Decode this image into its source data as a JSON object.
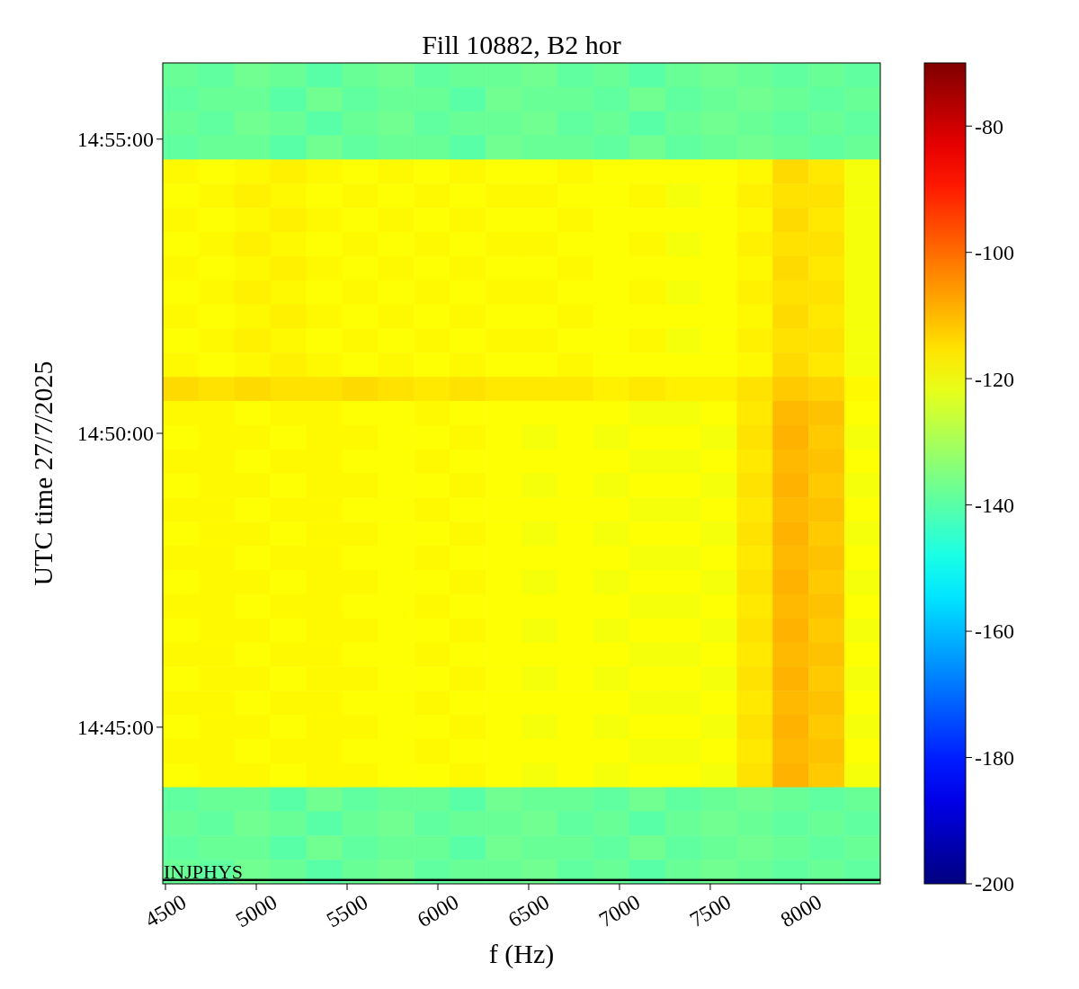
{
  "chart_data": {
    "type": "heatmap",
    "title": "Fill 10882, B2 hor",
    "xlabel": "f (Hz)",
    "ylabel": "UTC time 27/7/2025",
    "x": [
      4584,
      4781,
      4979,
      5176,
      5374,
      5572,
      5769,
      5967,
      6164,
      6362,
      6559,
      6757,
      6954,
      7152,
      7350,
      7547,
      7745,
      7942,
      8140,
      8337
    ],
    "xlim": [
      4485,
      8436
    ],
    "xticks": [
      4500,
      5000,
      5500,
      6000,
      6500,
      7000,
      7500,
      8000
    ],
    "ylim": [
      14.7056,
      14.9383
    ],
    "yticks": [
      {
        "value": 14.75,
        "label": "14:45:00"
      },
      {
        "value": 14.8333,
        "label": "14:50:00"
      },
      {
        "value": 14.9167,
        "label": "14:55:00"
      }
    ],
    "clim": [
      -200,
      -70
    ],
    "cticks": [
      -200,
      -180,
      -160,
      -140,
      -120,
      -100,
      -80
    ],
    "ref_lines": [
      {
        "axis": "y",
        "value": 14.7067,
        "label": "INJPHYS",
        "color": "#000000"
      }
    ],
    "cells": [
      [
        -138,
        -139,
        -137,
        -138,
        -140,
        -138,
        -137,
        -139,
        -138,
        -138,
        -137,
        -139,
        -138,
        -140,
        -138,
        -137,
        -138,
        -139,
        -138,
        -139
      ],
      [
        -139,
        -138,
        -138,
        -140,
        -137,
        -139,
        -138,
        -138,
        -140,
        -137,
        -138,
        -138,
        -139,
        -137,
        -139,
        -138,
        -137,
        -138,
        -139,
        -138
      ],
      [
        -138,
        -139,
        -137,
        -138,
        -140,
        -138,
        -137,
        -139,
        -138,
        -138,
        -137,
        -139,
        -138,
        -140,
        -138,
        -137,
        -138,
        -139,
        -138,
        -139
      ],
      [
        -139,
        -138,
        -138,
        -140,
        -137,
        -139,
        -138,
        -138,
        -140,
        -137,
        -138,
        -138,
        -139,
        -137,
        -139,
        -138,
        -137,
        -138,
        -139,
        -138
      ],
      [
        -118,
        -119,
        -118,
        -117,
        -118,
        -119,
        -118,
        -119,
        -118,
        -119,
        -119,
        -118,
        -119,
        -119,
        -119,
        -119,
        -118,
        -114,
        -116,
        -120
      ],
      [
        -119,
        -118,
        -117,
        -118,
        -119,
        -118,
        -119,
        -118,
        -119,
        -118,
        -118,
        -119,
        -119,
        -118,
        -120,
        -119,
        -117,
        -115,
        -115,
        -120
      ],
      [
        -118,
        -119,
        -118,
        -117,
        -118,
        -119,
        -118,
        -119,
        -118,
        -119,
        -119,
        -118,
        -119,
        -119,
        -119,
        -119,
        -118,
        -114,
        -116,
        -120
      ],
      [
        -119,
        -118,
        -117,
        -118,
        -119,
        -118,
        -119,
        -118,
        -119,
        -118,
        -118,
        -119,
        -119,
        -118,
        -120,
        -119,
        -117,
        -115,
        -115,
        -120
      ],
      [
        -118,
        -119,
        -118,
        -117,
        -118,
        -119,
        -118,
        -119,
        -118,
        -119,
        -119,
        -118,
        -119,
        -119,
        -119,
        -119,
        -118,
        -114,
        -116,
        -120
      ],
      [
        -119,
        -118,
        -117,
        -118,
        -119,
        -118,
        -119,
        -118,
        -119,
        -118,
        -118,
        -119,
        -119,
        -118,
        -120,
        -119,
        -117,
        -115,
        -115,
        -120
      ],
      [
        -118,
        -119,
        -118,
        -117,
        -118,
        -119,
        -118,
        -119,
        -118,
        -119,
        -119,
        -118,
        -119,
        -119,
        -119,
        -119,
        -118,
        -114,
        -116,
        -120
      ],
      [
        -119,
        -118,
        -117,
        -118,
        -119,
        -118,
        -119,
        -118,
        -119,
        -118,
        -118,
        -119,
        -119,
        -118,
        -120,
        -119,
        -117,
        -115,
        -115,
        -120
      ],
      [
        -118,
        -119,
        -118,
        -117,
        -118,
        -119,
        -118,
        -119,
        -118,
        -119,
        -119,
        -118,
        -119,
        -119,
        -119,
        -119,
        -118,
        -114,
        -116,
        -120
      ],
      [
        -114,
        -115,
        -114,
        -115,
        -115,
        -114,
        -115,
        -116,
        -115,
        -116,
        -116,
        -116,
        -117,
        -116,
        -117,
        -117,
        -115,
        -112,
        -113,
        -118
      ],
      [
        -118,
        -118,
        -119,
        -118,
        -118,
        -119,
        -119,
        -118,
        -119,
        -119,
        -119,
        -119,
        -119,
        -120,
        -120,
        -119,
        -116,
        -110,
        -111,
        -119
      ],
      [
        -119,
        -118,
        -118,
        -119,
        -118,
        -118,
        -119,
        -119,
        -118,
        -119,
        -120,
        -119,
        -120,
        -119,
        -119,
        -120,
        -115,
        -109,
        -112,
        -120
      ],
      [
        -118,
        -118,
        -119,
        -118,
        -118,
        -119,
        -119,
        -118,
        -119,
        -119,
        -119,
        -119,
        -119,
        -120,
        -120,
        -119,
        -116,
        -110,
        -111,
        -119
      ],
      [
        -119,
        -118,
        -118,
        -119,
        -118,
        -118,
        -119,
        -119,
        -118,
        -119,
        -120,
        -119,
        -120,
        -119,
        -119,
        -120,
        -115,
        -109,
        -112,
        -120
      ],
      [
        -118,
        -118,
        -119,
        -118,
        -118,
        -119,
        -119,
        -118,
        -119,
        -119,
        -119,
        -119,
        -119,
        -120,
        -120,
        -119,
        -116,
        -110,
        -111,
        -119
      ],
      [
        -119,
        -118,
        -118,
        -119,
        -118,
        -118,
        -119,
        -119,
        -118,
        -119,
        -120,
        -119,
        -120,
        -119,
        -119,
        -120,
        -115,
        -109,
        -112,
        -120
      ],
      [
        -118,
        -118,
        -119,
        -118,
        -118,
        -119,
        -119,
        -118,
        -119,
        -119,
        -119,
        -119,
        -119,
        -120,
        -120,
        -119,
        -116,
        -110,
        -111,
        -119
      ],
      [
        -119,
        -118,
        -118,
        -119,
        -118,
        -118,
        -119,
        -119,
        -118,
        -119,
        -120,
        -119,
        -120,
        -119,
        -119,
        -120,
        -115,
        -109,
        -112,
        -120
      ],
      [
        -118,
        -118,
        -119,
        -118,
        -118,
        -119,
        -119,
        -118,
        -119,
        -119,
        -119,
        -119,
        -119,
        -120,
        -120,
        -119,
        -116,
        -110,
        -111,
        -119
      ],
      [
        -119,
        -118,
        -118,
        -119,
        -118,
        -118,
        -119,
        -119,
        -118,
        -119,
        -120,
        -119,
        -120,
        -119,
        -119,
        -120,
        -115,
        -109,
        -112,
        -120
      ],
      [
        -118,
        -118,
        -119,
        -118,
        -118,
        -119,
        -119,
        -118,
        -119,
        -119,
        -119,
        -119,
        -119,
        -120,
        -120,
        -119,
        -116,
        -110,
        -111,
        -119
      ],
      [
        -119,
        -118,
        -118,
        -119,
        -118,
        -118,
        -119,
        -119,
        -118,
        -119,
        -120,
        -119,
        -120,
        -119,
        -119,
        -120,
        -115,
        -109,
        -112,
        -120
      ],
      [
        -118,
        -118,
        -119,
        -118,
        -118,
        -119,
        -119,
        -118,
        -119,
        -119,
        -119,
        -119,
        -119,
        -120,
        -120,
        -119,
        -116,
        -110,
        -111,
        -119
      ],
      [
        -119,
        -118,
        -118,
        -119,
        -118,
        -118,
        -119,
        -119,
        -118,
        -119,
        -120,
        -119,
        -120,
        -119,
        -119,
        -120,
        -115,
        -109,
        -112,
        -120
      ],
      [
        -118,
        -118,
        -119,
        -118,
        -118,
        -119,
        -119,
        -118,
        -119,
        -119,
        -119,
        -119,
        -119,
        -120,
        -120,
        -119,
        -116,
        -110,
        -111,
        -119
      ],
      [
        -119,
        -118,
        -118,
        -119,
        -118,
        -118,
        -119,
        -119,
        -118,
        -119,
        -120,
        -119,
        -120,
        -119,
        -119,
        -120,
        -115,
        -109,
        -112,
        -120
      ],
      [
        -139,
        -138,
        -138,
        -140,
        -137,
        -139,
        -138,
        -138,
        -140,
        -137,
        -138,
        -138,
        -139,
        -137,
        -139,
        -138,
        -137,
        -138,
        -139,
        -138
      ],
      [
        -138,
        -139,
        -137,
        -138,
        -140,
        -138,
        -137,
        -139,
        -138,
        -138,
        -137,
        -139,
        -138,
        -140,
        -138,
        -137,
        -138,
        -139,
        -138,
        -139
      ],
      [
        -139,
        -138,
        -138,
        -140,
        -137,
        -139,
        -138,
        -138,
        -140,
        -137,
        -138,
        -138,
        -139,
        -137,
        -139,
        -138,
        -137,
        -138,
        -139,
        -138
      ],
      [
        -138,
        -139,
        -137,
        -138,
        -140,
        -138,
        -137,
        -139,
        -138,
        -138,
        -137,
        -139,
        -138,
        -140,
        -138,
        -137,
        -138,
        -139,
        -138,
        -139
      ]
    ]
  }
}
